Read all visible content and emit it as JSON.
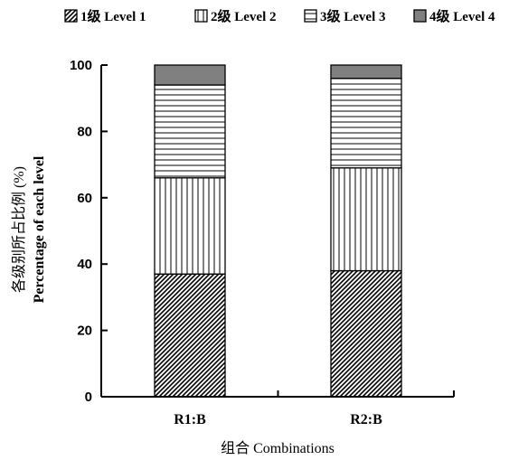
{
  "chart_data": {
    "type": "bar",
    "stacked": true,
    "categories": [
      "R1:B",
      "R2:B"
    ],
    "series": [
      {
        "name": "1级  Level 1",
        "values": [
          37,
          38
        ],
        "pattern": "diagonal-dense"
      },
      {
        "name": "2级 Level 2",
        "values": [
          29,
          31
        ],
        "pattern": "vertical-lines"
      },
      {
        "name": "3级 Level 3",
        "values": [
          28,
          27
        ],
        "pattern": "horizontal-lines"
      },
      {
        "name": "4级 Level 4",
        "values": [
          6,
          4
        ],
        "pattern": "solid-gray"
      }
    ],
    "xlabel": "组合 Combinations",
    "ylabel_cn": "各级别所占比例 (%)",
    "ylabel_en": "Percentage of each level",
    "ylim": [
      0,
      100
    ],
    "yticks": [
      0,
      20,
      40,
      60,
      80,
      100
    ],
    "legend_position": "top",
    "grid": false,
    "colors": {
      "gray_fill": "#808080",
      "line": "#000000",
      "background": "#ffffff"
    }
  }
}
